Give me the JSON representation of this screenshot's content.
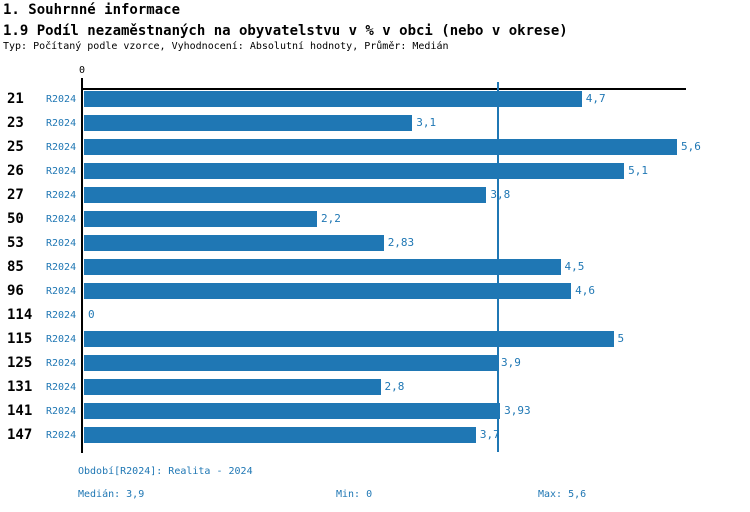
{
  "header": {
    "title": "1. Souhrnné informace",
    "subtitle": "1.9 Podíl nezaměstnaných na obyvatelstvu v % v obci (nebo v okrese)",
    "meta": "Typ: Počítaný podle vzorce, Vyhodnocení: Absolutní hodnoty, Průměr: Medián"
  },
  "chart_data": {
    "type": "bar",
    "orientation": "horizontal",
    "title": "1.9 Podíl nezaměstnaných na obyvatelstvu v % v obci (nebo v okrese)",
    "categories": [
      "21",
      "23",
      "25",
      "26",
      "27",
      "50",
      "53",
      "85",
      "96",
      "114",
      "115",
      "125",
      "131",
      "141",
      "147"
    ],
    "series": [
      {
        "name": "R2024",
        "values": [
          4.7,
          3.1,
          5.6,
          5.1,
          3.8,
          2.2,
          2.83,
          4.5,
          4.6,
          0,
          5,
          3.9,
          2.8,
          3.93,
          3.7
        ],
        "value_labels": [
          "4,7",
          "3,1",
          "5,6",
          "5,1",
          "3,8",
          "2,2",
          "2,83",
          "4,5",
          "4,6",
          "0",
          "5",
          "3,9",
          "2,8",
          "3,93",
          "3,7"
        ]
      }
    ],
    "xlim": [
      0,
      5.6
    ],
    "origin_tick_label": "0",
    "median_reference_line": 3.9,
    "grid": false,
    "legend_position": "none",
    "bar_color": "#1F77B4",
    "axis_color": "#000000",
    "stats": {
      "median": 3.9,
      "min": 0,
      "max": 5.6
    }
  },
  "footer": {
    "period": "Období[R2024]: Realita - 2024",
    "median": "Medián: 3,9",
    "min": "Min: 0",
    "max": "Max: 5,6"
  },
  "colors": {
    "accent": "#1F77B4",
    "text": "#000000",
    "background": "#FFFFFF"
  }
}
